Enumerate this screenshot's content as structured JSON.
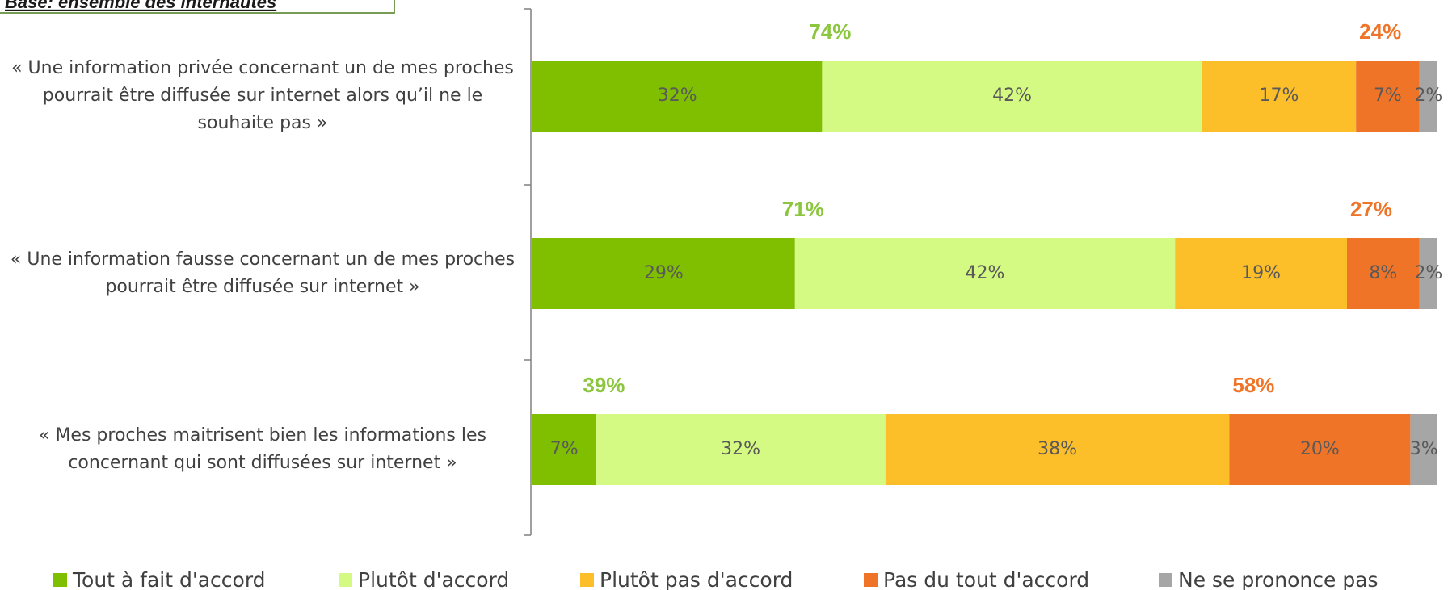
{
  "chart_data": {
    "type": "stacked-bar",
    "subtitle": "Base: ensemble des internautes",
    "categories": [
      "« Une information privée concernant un de mes proches pourrait être diffusée sur internet alors qu’il ne le souhaite pas »",
      "« Une information fausse concernant un de mes proches pourrait être diffusée sur internet »",
      "« Mes proches maitrisent bien les informations les concernant qui sont diffusées sur internet »"
    ],
    "series": [
      {
        "name": "Tout à fait d'accord",
        "color": "#7fbf00",
        "values": [
          32,
          29,
          7
        ],
        "value_labels": [
          "32%",
          "29%",
          "7%"
        ]
      },
      {
        "name": "Plutôt d'accord",
        "color": "#d4fa83",
        "values": [
          42,
          42,
          32
        ],
        "value_labels": [
          "42%",
          "42%",
          "32%"
        ]
      },
      {
        "name": "Plutôt pas d'accord",
        "color": "#fcbf2a",
        "values": [
          17,
          19,
          38
        ],
        "value_labels": [
          "17%",
          "19%",
          "38%"
        ]
      },
      {
        "name": "Pas du tout d'accord",
        "color": "#f07427",
        "values": [
          7,
          8,
          20
        ],
        "value_labels": [
          "7%",
          "8%",
          "20%"
        ]
      },
      {
        "name": "Ne se prononce pas",
        "color": "#a6a6a6",
        "values": [
          2,
          2,
          3
        ],
        "value_labels": [
          "2%",
          "2%",
          "3%"
        ]
      }
    ],
    "agree_totals": {
      "color": "#8cc63f",
      "values": [
        74,
        71,
        39
      ],
      "value_labels": [
        "74%",
        "71%",
        "39%"
      ]
    },
    "disagree_totals": {
      "color": "#f07427",
      "values": [
        24,
        27,
        58
      ],
      "value_labels": [
        "24%",
        "27%",
        "58%"
      ]
    },
    "xlim": [
      0,
      100
    ]
  }
}
